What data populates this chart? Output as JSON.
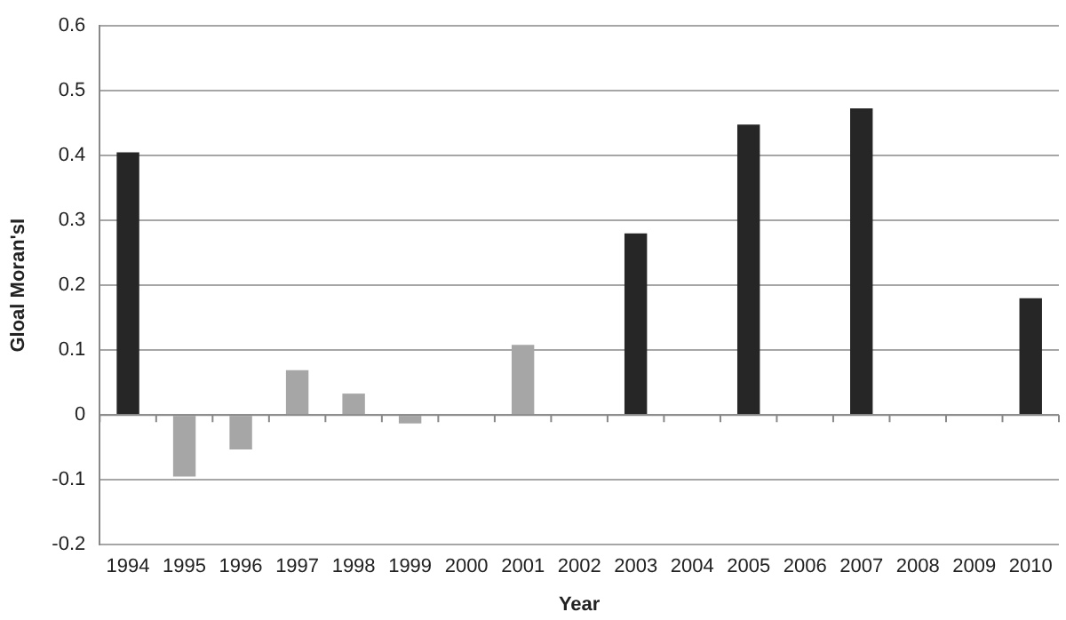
{
  "chart_data": {
    "type": "bar",
    "xlabel": "Year",
    "ylabel": "Gloal Moran'sI",
    "categories": [
      "1994",
      "1995",
      "1996",
      "1997",
      "1998",
      "1999",
      "2000",
      "2001",
      "2002",
      "2003",
      "2004",
      "2005",
      "2006",
      "2007",
      "2008",
      "2009",
      "2010"
    ],
    "values": [
      0.405,
      -0.095,
      -0.053,
      0.069,
      0.033,
      -0.013,
      null,
      0.108,
      null,
      0.28,
      null,
      0.448,
      null,
      0.473,
      null,
      null,
      0.18
    ],
    "colors": [
      "#262626",
      "#a6a6a6",
      "#a6a6a6",
      "#a6a6a6",
      "#a6a6a6",
      "#a6a6a6",
      "#a6a6a6",
      "#a6a6a6",
      "#a6a6a6",
      "#262626",
      "#a6a6a6",
      "#262626",
      "#a6a6a6",
      "#262626",
      "#a6a6a6",
      "#a6a6a6",
      "#262626"
    ],
    "ylim": [
      -0.2,
      0.6
    ],
    "yticks": [
      -0.2,
      -0.1,
      0,
      0.1,
      0.2,
      0.3,
      0.4,
      0.5,
      0.6
    ],
    "grid": "y"
  }
}
